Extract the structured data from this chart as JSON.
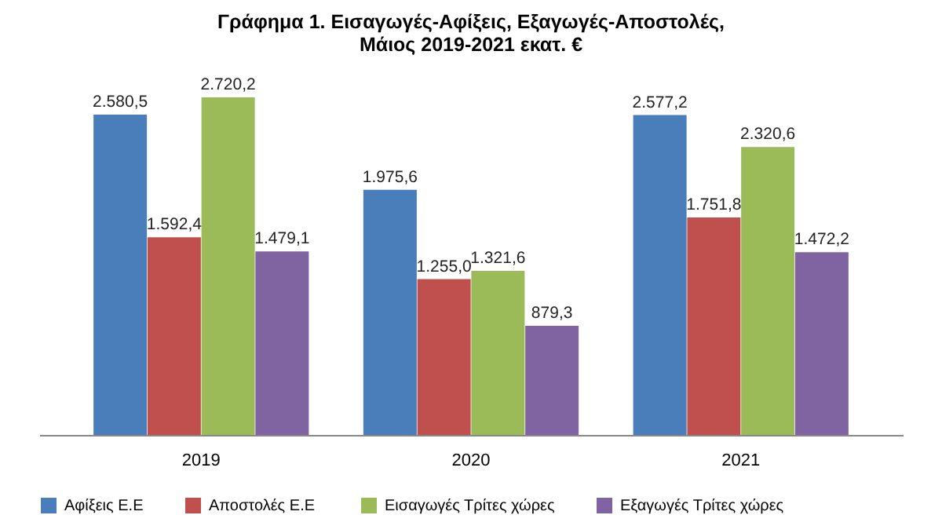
{
  "chart_data": {
    "type": "bar",
    "title": "Γράφημα 1. Εισαγωγές-Αφίξεις, Εξαγωγές-Αποστολές,\nΜάιος 2019-2021 εκατ. €",
    "categories": [
      "2019",
      "2020",
      "2021"
    ],
    "series": [
      {
        "name": "Αφίξεις Ε.Ε",
        "color": "#4a7ebb",
        "values": [
          2580.5,
          1975.6,
          2577.2
        ],
        "value_labels": [
          "2.580,5",
          "1.975,6",
          "2.577,2"
        ]
      },
      {
        "name": "Αποστολές  Ε.Ε",
        "color": "#c0504d",
        "values": [
          1592.4,
          1255.0,
          1751.8
        ],
        "value_labels": [
          "1.592,4",
          "1.255,0",
          "1.751,8"
        ]
      },
      {
        "name": "Εισαγωγές Τρίτες χώρες",
        "color": "#9bbb59",
        "values": [
          2720.2,
          1321.6,
          2320.6
        ],
        "value_labels": [
          "2.720,2",
          "1.321,6",
          "2.320,6"
        ]
      },
      {
        "name": "Εξαγωγές Τρίτες χώρες",
        "color": "#8064a2",
        "values": [
          1479.1,
          879.3,
          1472.2
        ],
        "value_labels": [
          "1.479,1",
          "879,3",
          "1.472,2"
        ]
      }
    ],
    "legend": "bottom",
    "grid": false
  }
}
